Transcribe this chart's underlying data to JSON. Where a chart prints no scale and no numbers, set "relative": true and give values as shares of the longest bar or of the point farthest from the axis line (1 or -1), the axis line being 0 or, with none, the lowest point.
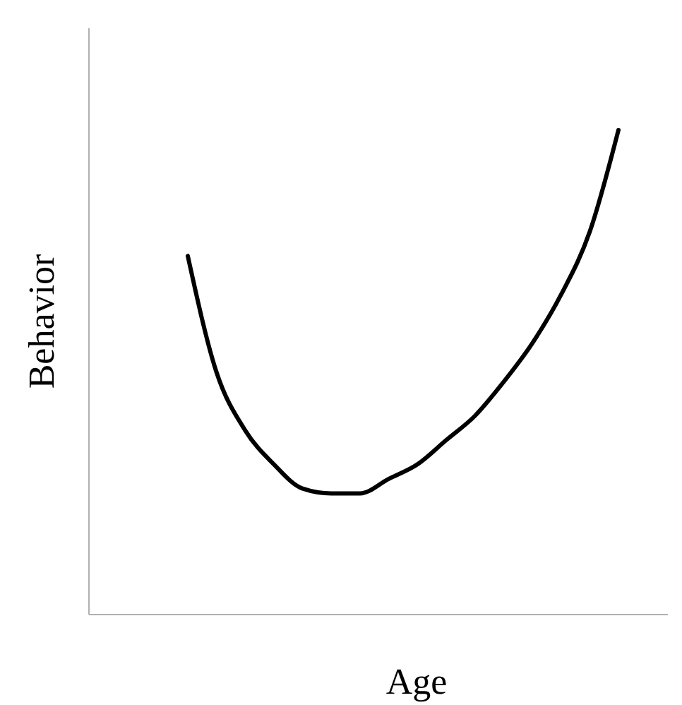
{
  "chart_data": {
    "type": "line",
    "relative": true,
    "xlabel": "Age",
    "ylabel": "Behavior",
    "marker": "none",
    "line_style": "solid",
    "categories": [
      null,
      null,
      null,
      null,
      null,
      null,
      null,
      null,
      null,
      null,
      null,
      null,
      null,
      null,
      null,
      null
    ],
    "series": [
      {
        "color": "#000000",
        "values": [
          0.74,
          0.5,
          0.38,
          0.31,
          0.26,
          0.25,
          0.25,
          0.28,
          0.31,
          0.36,
          0.41,
          0.48,
          0.56,
          0.66,
          0.79,
          1
        ]
      }
    ]
  }
}
